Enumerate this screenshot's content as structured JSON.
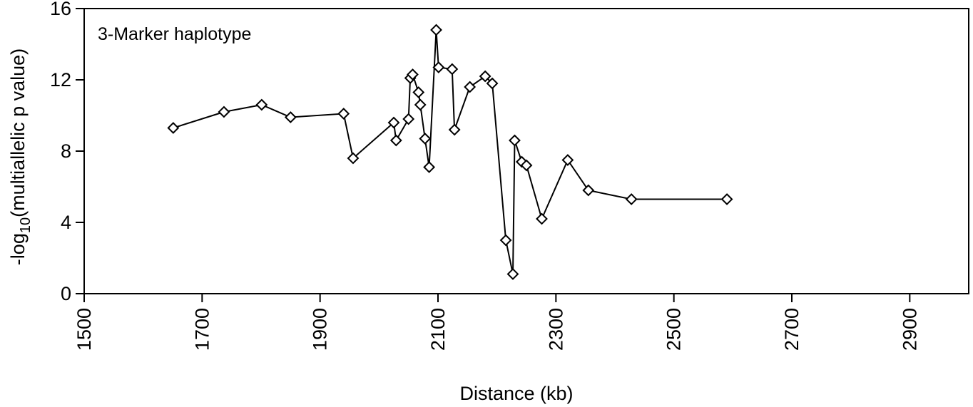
{
  "chart_data": {
    "type": "line",
    "annotation": "3-Marker haplotype",
    "xlabel": "Distance (kb)",
    "ylabel_main": "-log",
    "ylabel_sub": "10",
    "ylabel_rest": "(multiallelic p value)",
    "xlim": [
      1500,
      3000
    ],
    "ylim": [
      0,
      16
    ],
    "xticks": [
      "1500",
      "1700",
      "1900",
      "2100",
      "2300",
      "2500",
      "2700",
      "2900"
    ],
    "yticks": [
      "0",
      "4",
      "8",
      "12",
      "16"
    ],
    "grid": false,
    "marker": "diamond",
    "points": [
      {
        "x": 1651,
        "y": 9.3
      },
      {
        "x": 1737,
        "y": 10.2
      },
      {
        "x": 1801,
        "y": 10.6
      },
      {
        "x": 1850,
        "y": 9.9
      },
      {
        "x": 1940,
        "y": 10.1
      },
      {
        "x": 1956,
        "y": 7.6
      },
      {
        "x": 2025,
        "y": 9.6
      },
      {
        "x": 2029,
        "y": 8.6
      },
      {
        "x": 2050,
        "y": 9.8
      },
      {
        "x": 2053,
        "y": 12.1
      },
      {
        "x": 2057,
        "y": 12.3
      },
      {
        "x": 2067,
        "y": 11.3
      },
      {
        "x": 2070,
        "y": 10.6
      },
      {
        "x": 2078,
        "y": 8.7
      },
      {
        "x": 2085,
        "y": 7.1
      },
      {
        "x": 2097,
        "y": 14.8
      },
      {
        "x": 2101,
        "y": 12.7
      },
      {
        "x": 2124,
        "y": 12.6
      },
      {
        "x": 2128,
        "y": 9.2
      },
      {
        "x": 2154,
        "y": 11.6
      },
      {
        "x": 2180,
        "y": 12.2
      },
      {
        "x": 2192,
        "y": 11.8
      },
      {
        "x": 2215,
        "y": 3.0
      },
      {
        "x": 2227,
        "y": 1.1
      },
      {
        "x": 2230,
        "y": 8.6
      },
      {
        "x": 2242,
        "y": 7.4
      },
      {
        "x": 2250,
        "y": 7.2
      },
      {
        "x": 2276,
        "y": 4.2
      },
      {
        "x": 2320,
        "y": 7.5
      },
      {
        "x": 2355,
        "y": 5.8
      },
      {
        "x": 2428,
        "y": 5.3
      },
      {
        "x": 2590,
        "y": 5.3
      }
    ]
  }
}
